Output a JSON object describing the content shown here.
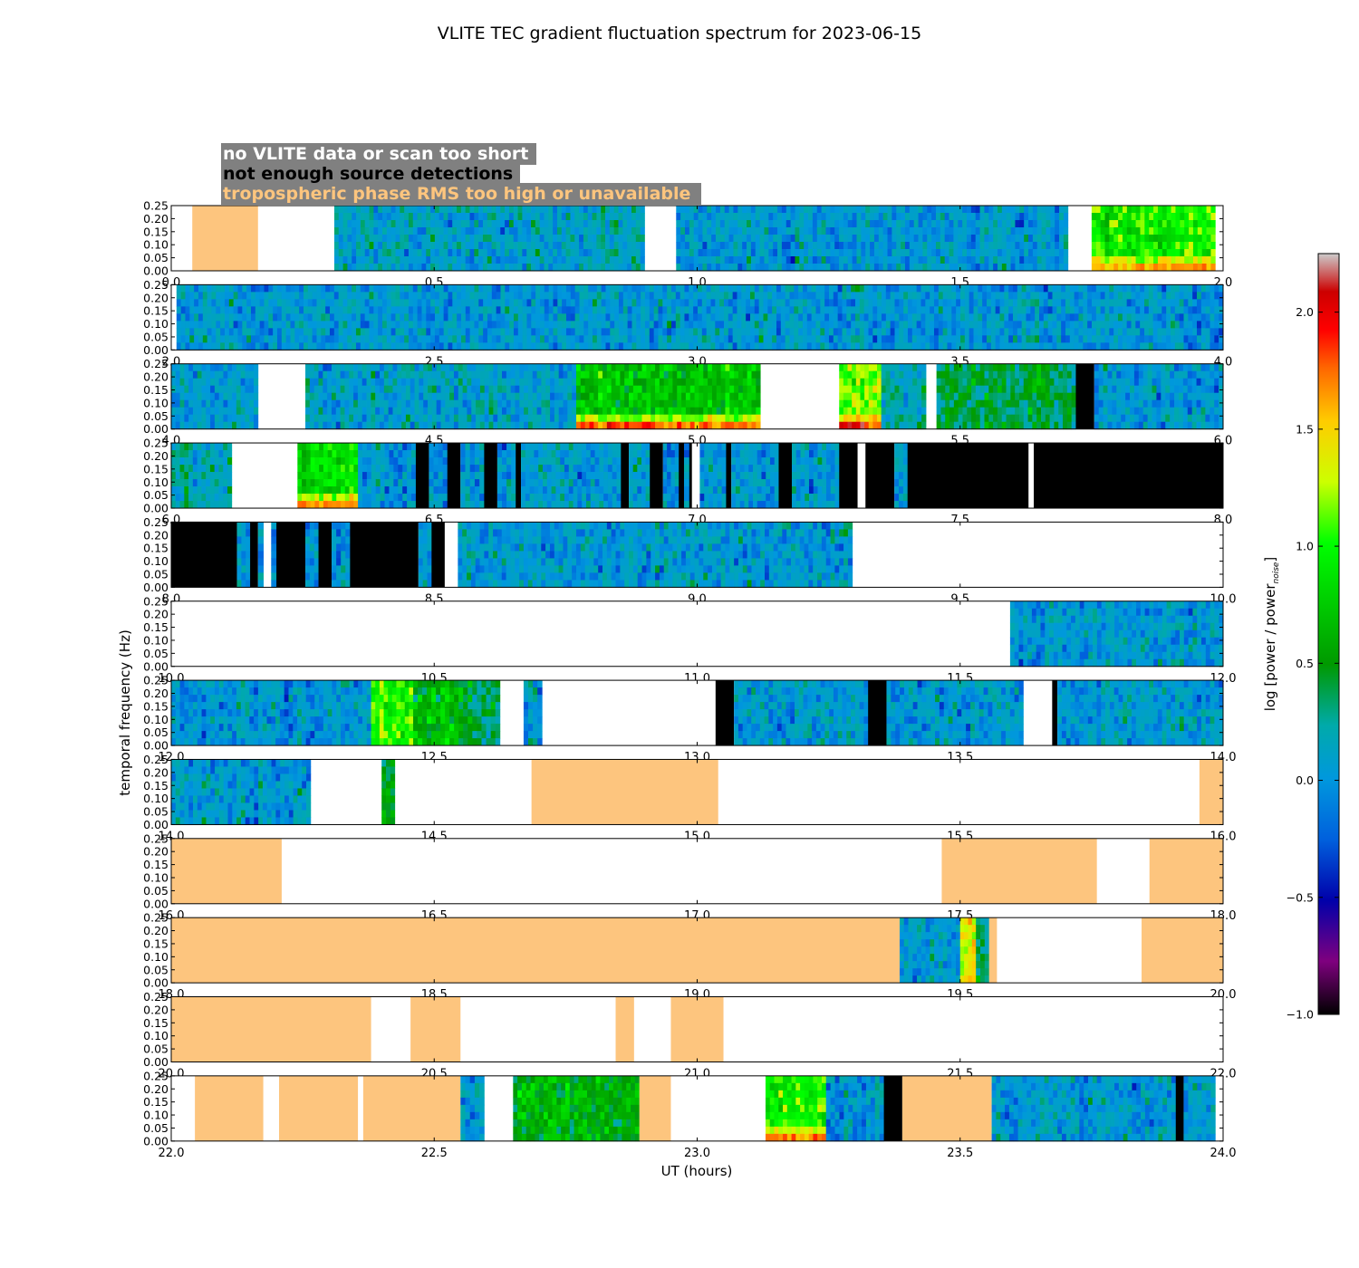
{
  "chart_data": {
    "type": "heatmap",
    "title": "VLITE TEC gradient fluctuation spectrum for 2023-06-15",
    "xlabel": "UT (hours)",
    "ylabel": "temporal frequency (Hz)",
    "colorbar": {
      "label": "log [power / power",
      "label_sub": "noise",
      "label_close": "]",
      "range": [
        -1.0,
        2.25
      ],
      "ticks": [
        "−1.0",
        "−0.5",
        "0.0",
        "0.5",
        "1.0",
        "1.5",
        "2.0"
      ],
      "tick_values": [
        -1.0,
        -0.5,
        0.0,
        0.5,
        1.0,
        1.5,
        2.0
      ],
      "colormap": "nipy_spectral"
    },
    "legend": [
      {
        "text": "no VLITE data or scan too short",
        "color": "#ffffff",
        "meaning": "white"
      },
      {
        "text": "not enough source detections",
        "color": "#000000",
        "meaning": "black"
      },
      {
        "text": "tropospheric phase RMS too high or unavailable",
        "color": "#fdc57e",
        "meaning": "orange"
      }
    ],
    "legend_box_color": "#808080",
    "flag_colors": {
      "none": "#ffffff",
      "nodet": "#000000",
      "tropo": "#fdc57e"
    },
    "y_ticks": [
      "0.00",
      "0.05",
      "0.10",
      "0.15",
      "0.20",
      "0.25"
    ],
    "y_tick_values": [
      0.0,
      0.05,
      0.1,
      0.15,
      0.2,
      0.25
    ],
    "ylim": [
      0,
      0.25
    ],
    "panels": [
      {
        "xlim": [
          0.0,
          2.0
        ],
        "x_ticks": [
          "0.0",
          "0.5",
          "1.0",
          "1.5",
          "2.0"
        ],
        "segments": [
          {
            "start": 0.0,
            "end": 0.04,
            "kind": "none"
          },
          {
            "start": 0.04,
            "end": 0.165,
            "kind": "tropo"
          },
          {
            "start": 0.165,
            "end": 0.31,
            "kind": "none"
          },
          {
            "start": 0.31,
            "end": 0.9,
            "kind": "data",
            "level": 0.05
          },
          {
            "start": 0.9,
            "end": 0.96,
            "kind": "none"
          },
          {
            "start": 0.96,
            "end": 1.705,
            "kind": "data",
            "level": 0.0
          },
          {
            "start": 1.705,
            "end": 1.75,
            "kind": "none"
          },
          {
            "start": 1.75,
            "end": 1.985,
            "kind": "data",
            "level": 0.9,
            "lowfreq": 1.5
          },
          {
            "start": 1.985,
            "end": 2.0,
            "kind": "none"
          }
        ]
      },
      {
        "xlim": [
          2.0,
          4.0
        ],
        "x_ticks": [
          "2.0",
          "2.5",
          "3.0",
          "3.5",
          "4.0"
        ],
        "segments": [
          {
            "start": 2.0,
            "end": 2.01,
            "kind": "none"
          },
          {
            "start": 2.01,
            "end": 4.0,
            "kind": "data",
            "level": 0.0
          }
        ]
      },
      {
        "xlim": [
          4.0,
          6.0
        ],
        "x_ticks": [
          "4.0",
          "4.5",
          "5.0",
          "5.5",
          "6.0"
        ],
        "segments": [
          {
            "start": 4.0,
            "end": 4.165,
            "kind": "data",
            "level": 0.0
          },
          {
            "start": 4.165,
            "end": 4.255,
            "kind": "none"
          },
          {
            "start": 4.255,
            "end": 4.77,
            "kind": "data",
            "level": 0.05
          },
          {
            "start": 4.77,
            "end": 5.12,
            "kind": "data",
            "level": 0.65,
            "lowfreq": 1.7
          },
          {
            "start": 5.12,
            "end": 5.27,
            "kind": "none"
          },
          {
            "start": 5.27,
            "end": 5.35,
            "kind": "data",
            "level": 1.1,
            "lowfreq": 1.8
          },
          {
            "start": 5.35,
            "end": 5.435,
            "kind": "data",
            "level": 0.1
          },
          {
            "start": 5.435,
            "end": 5.455,
            "kind": "none"
          },
          {
            "start": 5.455,
            "end": 5.72,
            "kind": "data",
            "level": 0.35
          },
          {
            "start": 5.72,
            "end": 5.755,
            "kind": "nodet"
          },
          {
            "start": 5.755,
            "end": 6.0,
            "kind": "data",
            "level": 0.0
          }
        ]
      },
      {
        "xlim": [
          6.0,
          8.0
        ],
        "x_ticks": [
          "6.0",
          "6.5",
          "7.0",
          "7.5",
          "8.0"
        ],
        "segments": [
          {
            "start": 6.0,
            "end": 6.115,
            "kind": "data",
            "level": 0.15
          },
          {
            "start": 6.115,
            "end": 6.24,
            "kind": "none"
          },
          {
            "start": 6.24,
            "end": 6.355,
            "kind": "data",
            "level": 0.8,
            "lowfreq": 1.6
          },
          {
            "start": 6.355,
            "end": 6.465,
            "kind": "data",
            "level": 0.0
          },
          {
            "start": 6.465,
            "end": 6.49,
            "kind": "nodet"
          },
          {
            "start": 6.49,
            "end": 6.525,
            "kind": "data",
            "level": 0.0
          },
          {
            "start": 6.525,
            "end": 6.55,
            "kind": "nodet"
          },
          {
            "start": 6.55,
            "end": 6.595,
            "kind": "data",
            "level": 0.0
          },
          {
            "start": 6.595,
            "end": 6.62,
            "kind": "nodet"
          },
          {
            "start": 6.62,
            "end": 6.655,
            "kind": "data",
            "level": 0.0
          },
          {
            "start": 6.655,
            "end": 6.665,
            "kind": "nodet"
          },
          {
            "start": 6.665,
            "end": 6.855,
            "kind": "data",
            "level": 0.0
          },
          {
            "start": 6.855,
            "end": 6.87,
            "kind": "nodet"
          },
          {
            "start": 6.87,
            "end": 6.91,
            "kind": "data",
            "level": 0.0
          },
          {
            "start": 6.91,
            "end": 6.935,
            "kind": "nodet"
          },
          {
            "start": 6.935,
            "end": 6.965,
            "kind": "data",
            "level": 0.0
          },
          {
            "start": 6.965,
            "end": 6.975,
            "kind": "nodet"
          },
          {
            "start": 6.975,
            "end": 6.985,
            "kind": "data",
            "level": 0.0
          },
          {
            "start": 6.985,
            "end": 6.99,
            "kind": "nodet"
          },
          {
            "start": 6.99,
            "end": 7.005,
            "kind": "none"
          },
          {
            "start": 7.005,
            "end": 7.055,
            "kind": "data",
            "level": 0.0
          },
          {
            "start": 7.055,
            "end": 7.065,
            "kind": "nodet"
          },
          {
            "start": 7.065,
            "end": 7.155,
            "kind": "data",
            "level": 0.0
          },
          {
            "start": 7.155,
            "end": 7.18,
            "kind": "nodet"
          },
          {
            "start": 7.18,
            "end": 7.27,
            "kind": "data",
            "level": 0.0
          },
          {
            "start": 7.27,
            "end": 7.305,
            "kind": "nodet"
          },
          {
            "start": 7.305,
            "end": 7.32,
            "kind": "none"
          },
          {
            "start": 7.32,
            "end": 7.375,
            "kind": "nodet"
          },
          {
            "start": 7.375,
            "end": 7.4,
            "kind": "data",
            "level": 0.0
          },
          {
            "start": 7.4,
            "end": 7.63,
            "kind": "nodet"
          },
          {
            "start": 7.63,
            "end": 7.64,
            "kind": "none"
          },
          {
            "start": 7.64,
            "end": 8.0,
            "kind": "nodet"
          }
        ]
      },
      {
        "xlim": [
          8.0,
          10.0
        ],
        "x_ticks": [
          "8.0",
          "8.5",
          "9.0",
          "9.5",
          "10.0"
        ],
        "segments": [
          {
            "start": 8.0,
            "end": 8.125,
            "kind": "nodet"
          },
          {
            "start": 8.125,
            "end": 8.15,
            "kind": "data",
            "level": 0.0
          },
          {
            "start": 8.15,
            "end": 8.165,
            "kind": "nodet"
          },
          {
            "start": 8.165,
            "end": 8.175,
            "kind": "data",
            "level": 0.0
          },
          {
            "start": 8.175,
            "end": 8.19,
            "kind": "none"
          },
          {
            "start": 8.19,
            "end": 8.2,
            "kind": "data",
            "level": 0.0
          },
          {
            "start": 8.2,
            "end": 8.255,
            "kind": "nodet"
          },
          {
            "start": 8.255,
            "end": 8.28,
            "kind": "data",
            "level": 0.0
          },
          {
            "start": 8.28,
            "end": 8.305,
            "kind": "nodet"
          },
          {
            "start": 8.305,
            "end": 8.34,
            "kind": "data",
            "level": 0.0
          },
          {
            "start": 8.34,
            "end": 8.47,
            "kind": "nodet"
          },
          {
            "start": 8.47,
            "end": 8.495,
            "kind": "data",
            "level": 0.0
          },
          {
            "start": 8.495,
            "end": 8.52,
            "kind": "nodet"
          },
          {
            "start": 8.52,
            "end": 8.545,
            "kind": "none"
          },
          {
            "start": 8.545,
            "end": 9.295,
            "kind": "data",
            "level": 0.0
          },
          {
            "start": 9.295,
            "end": 10.0,
            "kind": "none"
          }
        ]
      },
      {
        "xlim": [
          10.0,
          12.0
        ],
        "x_ticks": [
          "10.0",
          "10.5",
          "11.0",
          "11.5",
          "12.0"
        ],
        "segments": [
          {
            "start": 10.0,
            "end": 11.595,
            "kind": "none"
          },
          {
            "start": 11.595,
            "end": 12.0,
            "kind": "data",
            "level": 0.0
          }
        ]
      },
      {
        "xlim": [
          12.0,
          14.0
        ],
        "x_ticks": [
          "12.0",
          "12.5",
          "13.0",
          "13.5",
          "14.0"
        ],
        "segments": [
          {
            "start": 12.0,
            "end": 12.38,
            "kind": "data",
            "level": 0.0
          },
          {
            "start": 12.38,
            "end": 12.46,
            "kind": "data",
            "level": 0.9
          },
          {
            "start": 12.46,
            "end": 12.555,
            "kind": "data",
            "level": 0.6
          },
          {
            "start": 12.555,
            "end": 12.625,
            "kind": "data",
            "level": 0.35
          },
          {
            "start": 12.625,
            "end": 12.67,
            "kind": "none"
          },
          {
            "start": 12.67,
            "end": 12.705,
            "kind": "data",
            "level": 0.0
          },
          {
            "start": 12.705,
            "end": 13.035,
            "kind": "none"
          },
          {
            "start": 13.035,
            "end": 13.07,
            "kind": "nodet"
          },
          {
            "start": 13.07,
            "end": 13.325,
            "kind": "data",
            "level": 0.0
          },
          {
            "start": 13.325,
            "end": 13.36,
            "kind": "nodet"
          },
          {
            "start": 13.36,
            "end": 13.62,
            "kind": "data",
            "level": 0.0
          },
          {
            "start": 13.62,
            "end": 13.675,
            "kind": "none"
          },
          {
            "start": 13.675,
            "end": 13.685,
            "kind": "nodet"
          },
          {
            "start": 13.685,
            "end": 14.0,
            "kind": "data",
            "level": 0.0
          }
        ]
      },
      {
        "xlim": [
          14.0,
          16.0
        ],
        "x_ticks": [
          "14.0",
          "14.5",
          "15.0",
          "15.5",
          "16.0"
        ],
        "segments": [
          {
            "start": 14.0,
            "end": 14.265,
            "kind": "data",
            "level": 0.0
          },
          {
            "start": 14.265,
            "end": 14.4,
            "kind": "none"
          },
          {
            "start": 14.4,
            "end": 14.425,
            "kind": "data",
            "level": 0.4
          },
          {
            "start": 14.425,
            "end": 14.685,
            "kind": "none"
          },
          {
            "start": 14.685,
            "end": 15.04,
            "kind": "tropo"
          },
          {
            "start": 15.04,
            "end": 15.955,
            "kind": "none"
          },
          {
            "start": 15.955,
            "end": 16.0,
            "kind": "tropo"
          }
        ]
      },
      {
        "xlim": [
          16.0,
          18.0
        ],
        "x_ticks": [
          "16.0",
          "16.5",
          "17.0",
          "17.5",
          "18.0"
        ],
        "segments": [
          {
            "start": 16.0,
            "end": 16.21,
            "kind": "tropo"
          },
          {
            "start": 16.21,
            "end": 17.465,
            "kind": "none"
          },
          {
            "start": 17.465,
            "end": 17.76,
            "kind": "tropo"
          },
          {
            "start": 17.76,
            "end": 17.86,
            "kind": "none"
          },
          {
            "start": 17.86,
            "end": 18.0,
            "kind": "tropo"
          }
        ]
      },
      {
        "xlim": [
          18.0,
          20.0
        ],
        "x_ticks": [
          "18.0",
          "18.5",
          "19.0",
          "19.5",
          "20.0"
        ],
        "segments": [
          {
            "start": 18.0,
            "end": 19.385,
            "kind": "tropo"
          },
          {
            "start": 19.385,
            "end": 19.5,
            "kind": "data",
            "level": 0.0
          },
          {
            "start": 19.5,
            "end": 19.53,
            "kind": "data",
            "level": 1.3
          },
          {
            "start": 19.53,
            "end": 19.555,
            "kind": "data",
            "level": 0.3
          },
          {
            "start": 19.555,
            "end": 19.57,
            "kind": "tropo"
          },
          {
            "start": 19.57,
            "end": 19.845,
            "kind": "none"
          },
          {
            "start": 19.845,
            "end": 20.0,
            "kind": "tropo"
          }
        ]
      },
      {
        "xlim": [
          20.0,
          22.0
        ],
        "x_ticks": [
          "20.0",
          "20.5",
          "21.0",
          "21.5",
          "22.0"
        ],
        "segments": [
          {
            "start": 20.0,
            "end": 20.38,
            "kind": "tropo"
          },
          {
            "start": 20.38,
            "end": 20.455,
            "kind": "none"
          },
          {
            "start": 20.455,
            "end": 20.55,
            "kind": "tropo"
          },
          {
            "start": 20.55,
            "end": 20.845,
            "kind": "none"
          },
          {
            "start": 20.845,
            "end": 20.88,
            "kind": "tropo"
          },
          {
            "start": 20.88,
            "end": 20.95,
            "kind": "none"
          },
          {
            "start": 20.95,
            "end": 21.05,
            "kind": "tropo"
          },
          {
            "start": 21.05,
            "end": 22.0,
            "kind": "none"
          }
        ]
      },
      {
        "xlim": [
          22.0,
          24.0
        ],
        "x_ticks": [
          "22.0",
          "22.5",
          "23.0",
          "23.5",
          "24.0"
        ],
        "segments": [
          {
            "start": 22.0,
            "end": 22.045,
            "kind": "none"
          },
          {
            "start": 22.045,
            "end": 22.175,
            "kind": "tropo"
          },
          {
            "start": 22.175,
            "end": 22.205,
            "kind": "none"
          },
          {
            "start": 22.205,
            "end": 22.355,
            "kind": "tropo"
          },
          {
            "start": 22.355,
            "end": 22.365,
            "kind": "none"
          },
          {
            "start": 22.365,
            "end": 22.55,
            "kind": "tropo"
          },
          {
            "start": 22.55,
            "end": 22.595,
            "kind": "data",
            "level": 0.0
          },
          {
            "start": 22.595,
            "end": 22.65,
            "kind": "none"
          },
          {
            "start": 22.65,
            "end": 22.89,
            "kind": "data",
            "level": 0.55
          },
          {
            "start": 22.89,
            "end": 22.95,
            "kind": "tropo"
          },
          {
            "start": 22.95,
            "end": 23.13,
            "kind": "none"
          },
          {
            "start": 23.13,
            "end": 23.245,
            "kind": "data",
            "level": 0.9,
            "lowfreq": 1.6
          },
          {
            "start": 23.245,
            "end": 23.355,
            "kind": "data",
            "level": 0.0
          },
          {
            "start": 23.355,
            "end": 23.39,
            "kind": "nodet"
          },
          {
            "start": 23.39,
            "end": 23.56,
            "kind": "tropo"
          },
          {
            "start": 23.56,
            "end": 23.91,
            "kind": "data",
            "level": 0.0
          },
          {
            "start": 23.91,
            "end": 23.925,
            "kind": "nodet"
          },
          {
            "start": 23.925,
            "end": 23.985,
            "kind": "data",
            "level": 0.0
          },
          {
            "start": 23.985,
            "end": 24.0,
            "kind": "none"
          }
        ]
      }
    ]
  }
}
